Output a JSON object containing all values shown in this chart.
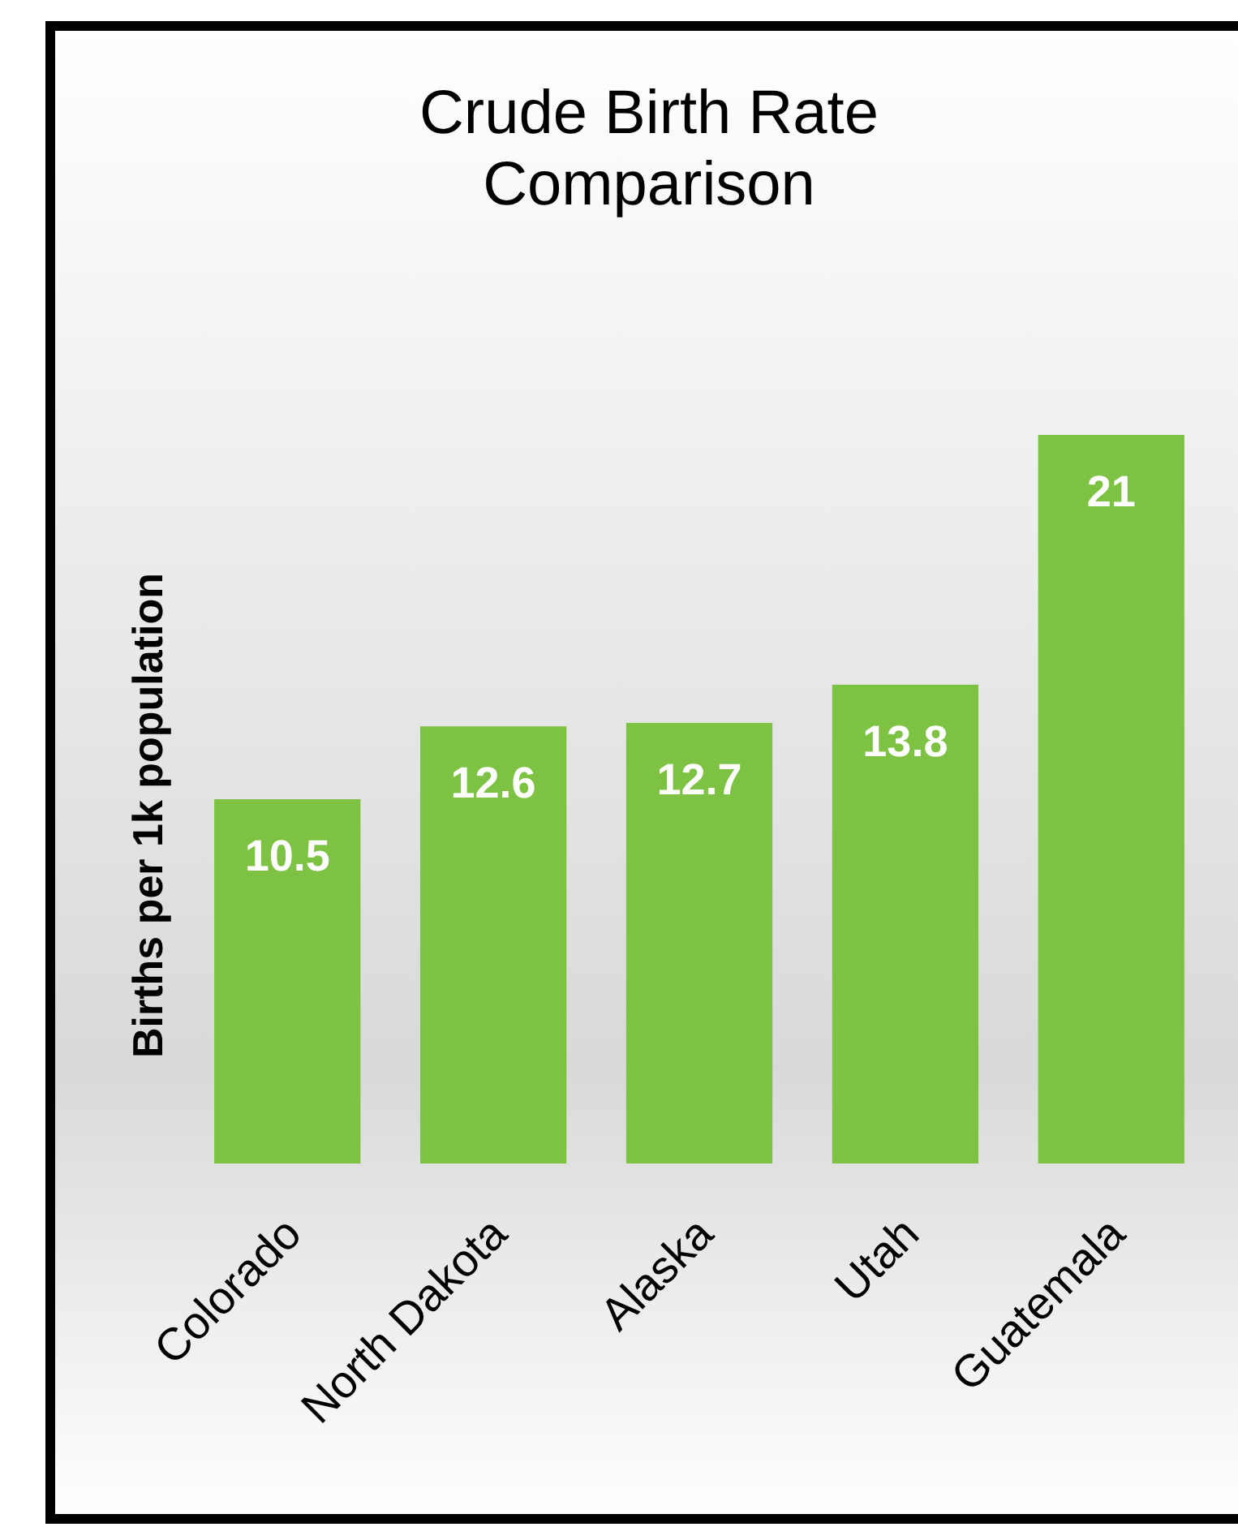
{
  "chart_data": {
    "type": "bar",
    "title": "Crude Birth Rate Comparison",
    "ylabel": "Births per 1k population",
    "categories": [
      "Colorado",
      "North Dakota",
      "Alaska",
      "Utah",
      "Guatemala"
    ],
    "values": [
      10.5,
      12.6,
      12.7,
      13.8,
      21
    ],
    "color": "#7dc242",
    "data_labels": true
  }
}
